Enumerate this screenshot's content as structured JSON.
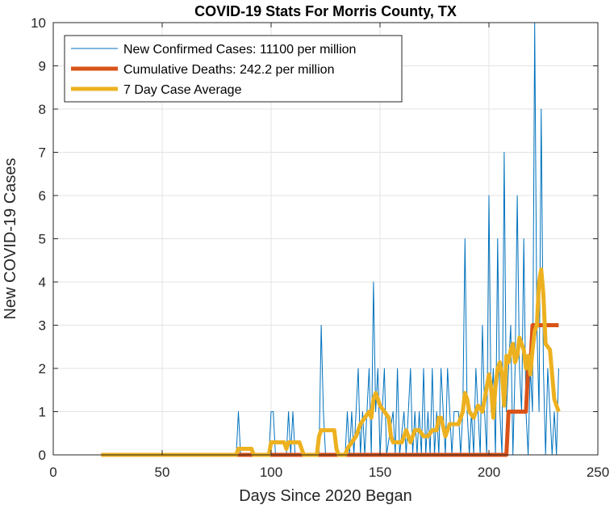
{
  "chart_data": {
    "type": "line",
    "title": "COVID-19 Stats For Morris County, TX",
    "xlabel": "Days Since 2020 Began",
    "ylabel": "New COVID-19 Cases",
    "xlim": [
      0,
      250
    ],
    "ylim": [
      0,
      10
    ],
    "xticks": [
      0,
      50,
      100,
      150,
      200,
      250
    ],
    "yticks": [
      0,
      1,
      2,
      3,
      4,
      5,
      6,
      7,
      8,
      9,
      10
    ],
    "grid": true,
    "legend_position": "top-left",
    "series": [
      {
        "name": "New Confirmed Cases: 11100 per million",
        "color": "#0072BD",
        "line_width": "thin",
        "points": [
          [
            22,
            0
          ],
          [
            84,
            0
          ],
          [
            85,
            1
          ],
          [
            86,
            0
          ],
          [
            99,
            0
          ],
          [
            100,
            1
          ],
          [
            101,
            1
          ],
          [
            102,
            0
          ],
          [
            107,
            0
          ],
          [
            108,
            1
          ],
          [
            109,
            0
          ],
          [
            110,
            1
          ],
          [
            111,
            0
          ],
          [
            122,
            0
          ],
          [
            123,
            3
          ],
          [
            124,
            1
          ],
          [
            125,
            0
          ],
          [
            134,
            0
          ],
          [
            135,
            1
          ],
          [
            136,
            0
          ],
          [
            137,
            1
          ],
          [
            138,
            0
          ],
          [
            140,
            2
          ],
          [
            141,
            0
          ],
          [
            142,
            1
          ],
          [
            143,
            0
          ],
          [
            145,
            2
          ],
          [
            146,
            0
          ],
          [
            147,
            4
          ],
          [
            148,
            1
          ],
          [
            149,
            2
          ],
          [
            150,
            0
          ],
          [
            151,
            1
          ],
          [
            152,
            2
          ],
          [
            153,
            0
          ],
          [
            156,
            1
          ],
          [
            157,
            0
          ],
          [
            158,
            2
          ],
          [
            159,
            0
          ],
          [
            161,
            1
          ],
          [
            162,
            0
          ],
          [
            163,
            1
          ],
          [
            164,
            2
          ],
          [
            165,
            0
          ],
          [
            166,
            1
          ],
          [
            167,
            0
          ],
          [
            168,
            1
          ],
          [
            169,
            0
          ],
          [
            170,
            2
          ],
          [
            171,
            0
          ],
          [
            172,
            1
          ],
          [
            173,
            0
          ],
          [
            174,
            2
          ],
          [
            175,
            0
          ],
          [
            176,
            1
          ],
          [
            177,
            0
          ],
          [
            178,
            2
          ],
          [
            179,
            1
          ],
          [
            180,
            0
          ],
          [
            181,
            2
          ],
          [
            182,
            1
          ],
          [
            183,
            0
          ],
          [
            184,
            1
          ],
          [
            185,
            1
          ],
          [
            186,
            1
          ],
          [
            187,
            0
          ],
          [
            188,
            1
          ],
          [
            189,
            5
          ],
          [
            190,
            1
          ],
          [
            191,
            0
          ],
          [
            192,
            1
          ],
          [
            193,
            0
          ],
          [
            194,
            2
          ],
          [
            195,
            1
          ],
          [
            196,
            0
          ],
          [
            197,
            3
          ],
          [
            198,
            1
          ],
          [
            199,
            0
          ],
          [
            200,
            6
          ],
          [
            201,
            1
          ],
          [
            202,
            2
          ],
          [
            203,
            0
          ],
          [
            204,
            5
          ],
          [
            205,
            1
          ],
          [
            206,
            0
          ],
          [
            207,
            7
          ],
          [
            208,
            1
          ],
          [
            209,
            2
          ],
          [
            210,
            3
          ],
          [
            211,
            0
          ],
          [
            212,
            2
          ],
          [
            213,
            6
          ],
          [
            214,
            2
          ],
          [
            215,
            1
          ],
          [
            216,
            5
          ],
          [
            217,
            1
          ],
          [
            218,
            0
          ],
          [
            219,
            2
          ],
          [
            220,
            1
          ],
          [
            221,
            10
          ],
          [
            222,
            3
          ],
          [
            223,
            1
          ],
          [
            224,
            8
          ],
          [
            225,
            2
          ],
          [
            226,
            0
          ],
          [
            227,
            2
          ],
          [
            228,
            1
          ],
          [
            229,
            0
          ],
          [
            230,
            1
          ],
          [
            231,
            0
          ],
          [
            232,
            2
          ]
        ]
      },
      {
        "name": "Cumulative Deaths: 242.2 per million",
        "color": "#D95319",
        "line_width": "thick",
        "points": [
          [
            22,
            0
          ],
          [
            208,
            0
          ],
          [
            209,
            1
          ],
          [
            217,
            1
          ],
          [
            218,
            2
          ],
          [
            219,
            2
          ],
          [
            220,
            3
          ],
          [
            232,
            3
          ]
        ]
      },
      {
        "name": "7 Day Case Average",
        "color": "#EDB120",
        "line_width": "thick",
        "points": [
          [
            22,
            0
          ],
          [
            84,
            0
          ],
          [
            85,
            0.14
          ],
          [
            91,
            0.14
          ],
          [
            92,
            0
          ],
          [
            99,
            0
          ],
          [
            100,
            0.29
          ],
          [
            106,
            0.29
          ],
          [
            107,
            0.14
          ],
          [
            108,
            0.29
          ],
          [
            113,
            0.29
          ],
          [
            114,
            0.14
          ],
          [
            115,
            0
          ],
          [
            121,
            0
          ],
          [
            122,
            0.43
          ],
          [
            123,
            0.57
          ],
          [
            129,
            0.57
          ],
          [
            130,
            0.14
          ],
          [
            131,
            0
          ],
          [
            134,
            0
          ],
          [
            135,
            0.14
          ],
          [
            137,
            0.29
          ],
          [
            139,
            0.43
          ],
          [
            141,
            0.71
          ],
          [
            143,
            0.86
          ],
          [
            145,
            1.0
          ],
          [
            146,
            0.86
          ],
          [
            147,
            1.29
          ],
          [
            148,
            1.43
          ],
          [
            150,
            1.14
          ],
          [
            152,
            1.0
          ],
          [
            154,
            0.86
          ],
          [
            155,
            0.43
          ],
          [
            156,
            0.29
          ],
          [
            160,
            0.29
          ],
          [
            161,
            0.43
          ],
          [
            162,
            0.57
          ],
          [
            163,
            0.43
          ],
          [
            164,
            0.29
          ],
          [
            166,
            0.57
          ],
          [
            168,
            0.57
          ],
          [
            170,
            0.43
          ],
          [
            172,
            0.43
          ],
          [
            174,
            0.57
          ],
          [
            176,
            0.57
          ],
          [
            177,
            0.86
          ],
          [
            178,
            0.86
          ],
          [
            180,
            0.43
          ],
          [
            182,
            0.71
          ],
          [
            184,
            0.71
          ],
          [
            186,
            0.71
          ],
          [
            188,
            1.0
          ],
          [
            189,
            1.43
          ],
          [
            190,
            1.29
          ],
          [
            191,
            1.0
          ],
          [
            193,
            0.86
          ],
          [
            195,
            1.14
          ],
          [
            197,
            1.0
          ],
          [
            199,
            1.57
          ],
          [
            200,
            1.86
          ],
          [
            201,
            1.57
          ],
          [
            202,
            0.86
          ],
          [
            203,
            1.57
          ],
          [
            204,
            2.0
          ],
          [
            205,
            2.14
          ],
          [
            206,
            1.86
          ],
          [
            207,
            1.14
          ],
          [
            208,
            2.29
          ],
          [
            209,
            2.14
          ],
          [
            210,
            2.43
          ],
          [
            211,
            2.57
          ],
          [
            212,
            2.14
          ],
          [
            213,
            2.29
          ],
          [
            214,
            2.71
          ],
          [
            215,
            2.57
          ],
          [
            216,
            2.43
          ],
          [
            217,
            2.0
          ],
          [
            218,
            2.29
          ],
          [
            219,
            1.86
          ],
          [
            220,
            2.43
          ],
          [
            221,
            2.86
          ],
          [
            222,
            3.0
          ],
          [
            223,
            4.0
          ],
          [
            224,
            4.29
          ],
          [
            225,
            3.71
          ],
          [
            226,
            2.57
          ],
          [
            228,
            2.43
          ],
          [
            229,
            1.86
          ],
          [
            230,
            1.29
          ],
          [
            231,
            1.14
          ],
          [
            232,
            1.0
          ]
        ]
      }
    ]
  }
}
